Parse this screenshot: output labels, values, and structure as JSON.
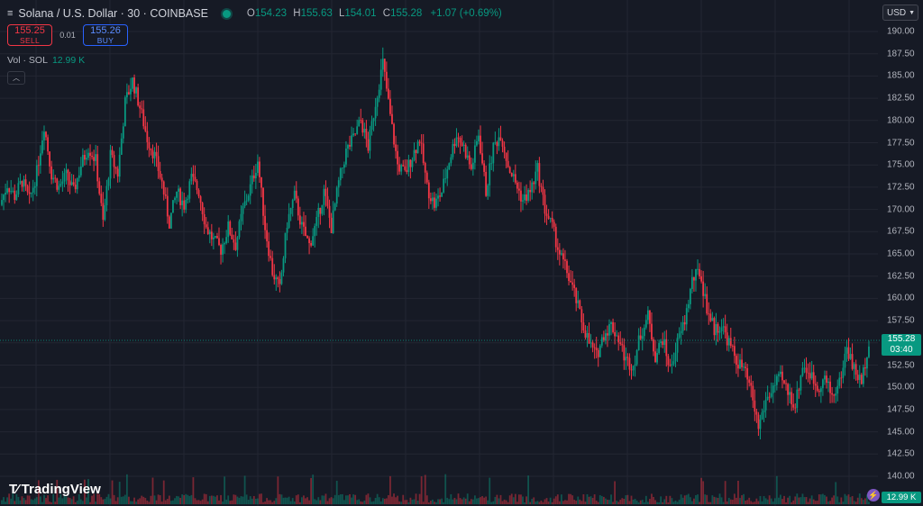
{
  "header": {
    "menu_icon": "hamburger-icon",
    "symbol": "Solana / U.S. Dollar · 30 · COINBASE",
    "status_color": "#089981",
    "ohlc": {
      "o_label": "O",
      "o": "154.23",
      "h_label": "H",
      "h": "155.63",
      "l_label": "L",
      "l": "154.01",
      "c_label": "C",
      "c": "155.28",
      "change": "+1.07 (+0.69%)"
    },
    "currency": "USD"
  },
  "trade": {
    "sell_price": "155.25",
    "sell_label": "SELL",
    "spread": "0.01",
    "buy_price": "155.26",
    "buy_label": "BUY"
  },
  "volume_legend": {
    "label": "Vol · SOL",
    "value": "12.99 K"
  },
  "price_tag": {
    "price": "155.28",
    "countdown": "03:40"
  },
  "volume_tag": "12.99 K",
  "logo_text": "TradingView",
  "colors": {
    "up": "#089981",
    "down": "#f23645",
    "background": "#161a25",
    "grid": "#232632"
  },
  "chart_data": {
    "type": "candlestick",
    "symbol": "SOL/USD",
    "interval": "30",
    "y_axis": {
      "ticks": [
        "190.00",
        "187.50",
        "185.00",
        "182.50",
        "180.00",
        "177.50",
        "175.00",
        "172.50",
        "170.00",
        "167.50",
        "165.00",
        "162.50",
        "160.00",
        "157.50",
        "155.00",
        "152.50",
        "150.00",
        "147.50",
        "145.00",
        "142.50",
        "140.00"
      ],
      "range": [
        139,
        191
      ]
    },
    "grid": true,
    "last_price": 155.28,
    "close_path": [
      [
        0,
        170.5
      ],
      [
        1,
        172.8
      ],
      [
        2,
        171.5
      ],
      [
        3,
        173.2
      ],
      [
        4,
        171.0
      ],
      [
        5,
        174.2
      ],
      [
        6,
        179.5
      ],
      [
        7,
        174.0
      ],
      [
        8,
        172.5
      ],
      [
        9,
        173.8
      ],
      [
        10,
        172.0
      ],
      [
        11,
        175.0
      ],
      [
        12,
        177.0
      ],
      [
        13,
        175.5
      ],
      [
        14,
        168.5
      ],
      [
        15,
        176.0
      ],
      [
        16,
        174.0
      ],
      [
        17,
        182.0
      ],
      [
        18,
        184.5
      ],
      [
        19,
        181.5
      ],
      [
        20,
        178.0
      ],
      [
        21,
        176.0
      ],
      [
        22,
        173.0
      ],
      [
        23,
        168.5
      ],
      [
        24,
        172.0
      ],
      [
        25,
        170.5
      ],
      [
        26,
        173.5
      ],
      [
        27,
        172.0
      ],
      [
        28,
        168.0
      ],
      [
        29,
        166.5
      ],
      [
        30,
        165.5
      ],
      [
        31,
        168.0
      ],
      [
        32,
        166.0
      ],
      [
        33,
        170.0
      ],
      [
        34,
        172.5
      ],
      [
        35,
        175.5
      ],
      [
        36,
        168.0
      ],
      [
        37,
        163.0
      ],
      [
        38,
        161.0
      ],
      [
        39,
        168.5
      ],
      [
        40,
        171.5
      ],
      [
        41,
        168.0
      ],
      [
        42,
        166.0
      ],
      [
        43,
        168.5
      ],
      [
        44,
        172.0
      ],
      [
        45,
        168.0
      ],
      [
        46,
        173.0
      ],
      [
        47,
        176.5
      ],
      [
        48,
        178.0
      ],
      [
        49,
        180.0
      ],
      [
        50,
        177.0
      ],
      [
        51,
        182.0
      ],
      [
        52,
        186.5
      ],
      [
        53,
        180.5
      ],
      [
        54,
        175.0
      ],
      [
        55,
        174.0
      ],
      [
        56,
        176.0
      ],
      [
        57,
        178.0
      ],
      [
        58,
        172.5
      ],
      [
        59,
        170.5
      ],
      [
        60,
        172.0
      ],
      [
        61,
        175.5
      ],
      [
        62,
        178.5
      ],
      [
        63,
        177.0
      ],
      [
        64,
        174.5
      ],
      [
        65,
        178.5
      ],
      [
        66,
        172.0
      ],
      [
        67,
        177.0
      ],
      [
        68,
        178.5
      ],
      [
        69,
        175.0
      ],
      [
        70,
        173.0
      ],
      [
        71,
        171.0
      ],
      [
        72,
        172.0
      ],
      [
        73,
        174.5
      ],
      [
        74,
        170.0
      ],
      [
        75,
        168.0
      ],
      [
        76,
        165.0
      ],
      [
        77,
        163.0
      ],
      [
        78,
        160.5
      ],
      [
        79,
        157.5
      ],
      [
        80,
        155.0
      ],
      [
        81,
        153.5
      ],
      [
        82,
        156.0
      ],
      [
        83,
        157.0
      ],
      [
        84,
        155.5
      ],
      [
        85,
        153.0
      ],
      [
        86,
        152.5
      ],
      [
        87,
        156.0
      ],
      [
        88,
        158.0
      ],
      [
        89,
        153.5
      ],
      [
        90,
        155.5
      ],
      [
        91,
        152.0
      ],
      [
        92,
        155.0
      ],
      [
        93,
        157.5
      ],
      [
        94,
        162.0
      ],
      [
        95,
        163.0
      ],
      [
        96,
        159.0
      ],
      [
        97,
        156.5
      ],
      [
        98,
        157.0
      ],
      [
        99,
        155.0
      ],
      [
        100,
        153.0
      ],
      [
        101,
        152.0
      ],
      [
        102,
        149.5
      ],
      [
        103,
        145.5
      ],
      [
        104,
        148.5
      ],
      [
        105,
        150.0
      ],
      [
        106,
        151.0
      ],
      [
        107,
        149.5
      ],
      [
        108,
        148.0
      ],
      [
        109,
        152.5
      ],
      [
        110,
        151.5
      ],
      [
        111,
        150.0
      ],
      [
        112,
        151.0
      ],
      [
        113,
        149.0
      ],
      [
        114,
        150.5
      ],
      [
        115,
        154.5
      ],
      [
        116,
        152.0
      ],
      [
        117,
        150.5
      ],
      [
        118,
        155.3
      ]
    ]
  }
}
